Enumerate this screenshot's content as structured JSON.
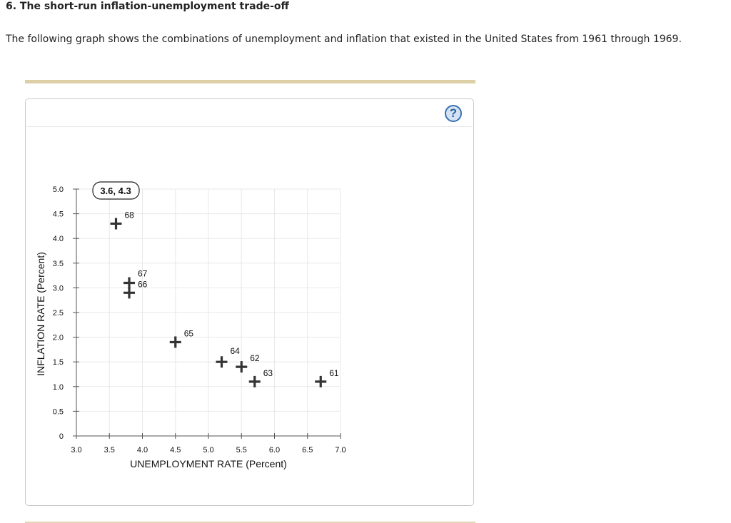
{
  "question": {
    "title": "6. The short-run inflation-unemployment trade-off",
    "text": "The following graph shows the combinations of unemployment and inflation that existed in the United States from 1961 through 1969."
  },
  "panel": {
    "help_icon": "question-mark-icon",
    "help_label": "?"
  },
  "colors": {
    "divider": "#ddcfa8",
    "panel_border": "#c9c9c9",
    "help_fill": "#d3e3f5",
    "help_stroke": "#3a6fb0",
    "marker": "#333333",
    "grid": "#e8e8e8"
  },
  "tooltip": {
    "label": "3.6, 4.3"
  },
  "chart_data": {
    "type": "scatter",
    "title": "",
    "xlabel": "UNEMPLOYMENT RATE (Percent)",
    "ylabel": "INFLATION RATE (Percent)",
    "xlim": [
      3.0,
      7.0
    ],
    "ylim": [
      0,
      5.0
    ],
    "xticks": [
      "3.0",
      "3.5",
      "4.0",
      "4.5",
      "5.0",
      "5.5",
      "6.0",
      "6.5",
      "7.0"
    ],
    "yticks": [
      "0",
      "0.5",
      "1.0",
      "1.5",
      "2.0",
      "2.5",
      "3.0",
      "3.5",
      "4.0",
      "4.5",
      "5.0"
    ],
    "grid": true,
    "marker": "plus",
    "points": [
      {
        "label": "61",
        "x": 6.7,
        "y": 1.1
      },
      {
        "label": "62",
        "x": 5.5,
        "y": 1.4
      },
      {
        "label": "63",
        "x": 5.7,
        "y": 1.1
      },
      {
        "label": "64",
        "x": 5.2,
        "y": 1.5
      },
      {
        "label": "65",
        "x": 4.5,
        "y": 1.9
      },
      {
        "label": "66",
        "x": 3.8,
        "y": 2.9
      },
      {
        "label": "67",
        "x": 3.8,
        "y": 3.1
      },
      {
        "label": "68",
        "x": 3.6,
        "y": 4.3
      }
    ],
    "annotations": [
      {
        "text": "3.6, 4.3",
        "type": "tooltip",
        "for_point": "68"
      }
    ]
  }
}
